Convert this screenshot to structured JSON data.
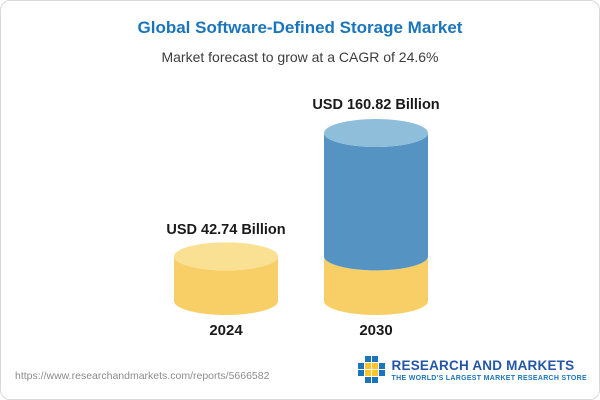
{
  "header": {
    "title": "Global Software-Defined Storage Market",
    "subtitle": "Market forecast to grow at a CAGR of 24.6%"
  },
  "chart_data": {
    "type": "bar",
    "variant": "3d-cylinder",
    "title": "Global Software-Defined Storage Market",
    "subtitle": "Market forecast to grow at a CAGR of 24.6%",
    "unit": "USD Billion",
    "categories": [
      "2024",
      "2030"
    ],
    "values": [
      42.74,
      160.82
    ],
    "value_labels": [
      "USD 42.74 Billion",
      "USD 160.82 Billion"
    ],
    "cagr_percent": 24.6,
    "ylim": [
      0,
      160.82
    ],
    "grid": false,
    "legend_position": "none",
    "colors": {
      "yellow_body": "#F7CF66",
      "yellow_top": "#FAE093",
      "blue_body": "#5593C2",
      "blue_top": "#8FBEDB"
    }
  },
  "footer": {
    "url": "https://www.researchandmarkets.com/reports/5666582",
    "logo_text": "RESEARCH AND MARKETS",
    "logo_tagline": "THE WORLD'S LARGEST MARKET RESEARCH STORE"
  }
}
